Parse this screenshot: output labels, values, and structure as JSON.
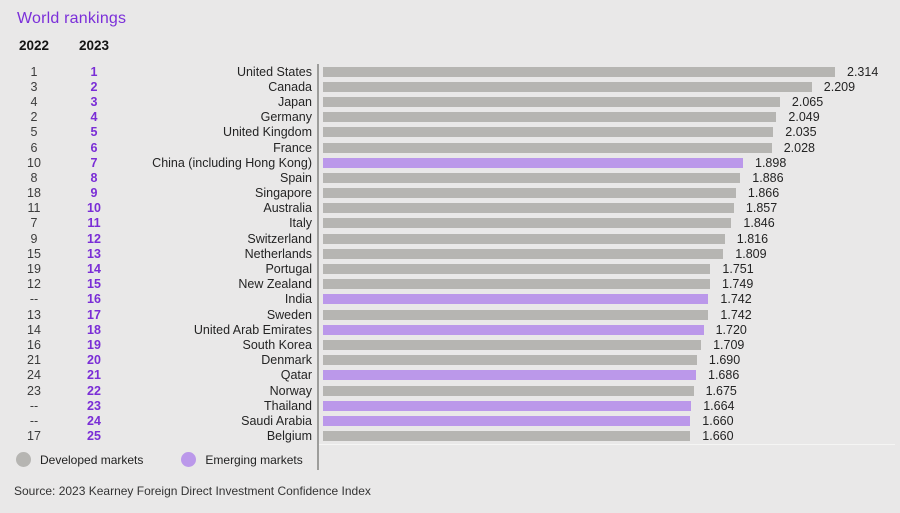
{
  "title": "World rankings",
  "columns": {
    "col2022": "2022",
    "col2023": "2023"
  },
  "colors": {
    "background": "#e9e8e8",
    "title": "#7b2fd9",
    "rank2023": "#7a2dd6",
    "developed": "#b6b5b2",
    "emerging": "#bb98ea",
    "axis": "#9d9d9b",
    "baseline": "#f5f5f4"
  },
  "legend": [
    {
      "label": "Developed markets",
      "type": "developed"
    },
    {
      "label": "Emerging markets",
      "type": "emerging"
    }
  ],
  "source": "Source: 2023 Kearney Foreign Direct Investment Confidence Index",
  "chart_data": {
    "type": "bar",
    "orientation": "horizontal",
    "title": "World rankings",
    "value_max": 2.314,
    "value_axis_range": [
      0,
      2.314
    ],
    "grid": false,
    "legend_position": "bottom-left",
    "rows": [
      {
        "rank2022": "1",
        "rank2023": "1",
        "country": "United States",
        "value": 2.314,
        "market": "developed"
      },
      {
        "rank2022": "3",
        "rank2023": "2",
        "country": "Canada",
        "value": 2.209,
        "market": "developed"
      },
      {
        "rank2022": "4",
        "rank2023": "3",
        "country": "Japan",
        "value": 2.065,
        "market": "developed"
      },
      {
        "rank2022": "2",
        "rank2023": "4",
        "country": "Germany",
        "value": 2.049,
        "market": "developed"
      },
      {
        "rank2022": "5",
        "rank2023": "5",
        "country": "United Kingdom",
        "value": 2.035,
        "market": "developed"
      },
      {
        "rank2022": "6",
        "rank2023": "6",
        "country": "France",
        "value": 2.028,
        "market": "developed"
      },
      {
        "rank2022": "10",
        "rank2023": "7",
        "country": "China (including Hong Kong)",
        "value": 1.898,
        "market": "emerging"
      },
      {
        "rank2022": "8",
        "rank2023": "8",
        "country": "Spain",
        "value": 1.886,
        "market": "developed"
      },
      {
        "rank2022": "18",
        "rank2023": "9",
        "country": "Singapore",
        "value": 1.866,
        "market": "developed"
      },
      {
        "rank2022": "11",
        "rank2023": "10",
        "country": "Australia",
        "value": 1.857,
        "market": "developed"
      },
      {
        "rank2022": "7",
        "rank2023": "11",
        "country": "Italy",
        "value": 1.846,
        "market": "developed"
      },
      {
        "rank2022": "9",
        "rank2023": "12",
        "country": "Switzerland",
        "value": 1.816,
        "market": "developed"
      },
      {
        "rank2022": "15",
        "rank2023": "13",
        "country": "Netherlands",
        "value": 1.809,
        "market": "developed"
      },
      {
        "rank2022": "19",
        "rank2023": "14",
        "country": "Portugal",
        "value": 1.751,
        "market": "developed"
      },
      {
        "rank2022": "12",
        "rank2023": "15",
        "country": "New Zealand",
        "value": 1.749,
        "market": "developed"
      },
      {
        "rank2022": "--",
        "rank2023": "16",
        "country": "India",
        "value": 1.742,
        "market": "emerging"
      },
      {
        "rank2022": "13",
        "rank2023": "17",
        "country": "Sweden",
        "value": 1.742,
        "market": "developed"
      },
      {
        "rank2022": "14",
        "rank2023": "18",
        "country": "United Arab Emirates",
        "value": 1.72,
        "market": "emerging"
      },
      {
        "rank2022": "16",
        "rank2023": "19",
        "country": "South Korea",
        "value": 1.709,
        "market": "developed"
      },
      {
        "rank2022": "21",
        "rank2023": "20",
        "country": "Denmark",
        "value": 1.69,
        "market": "developed"
      },
      {
        "rank2022": "24",
        "rank2023": "21",
        "country": "Qatar",
        "value": 1.686,
        "market": "emerging"
      },
      {
        "rank2022": "23",
        "rank2023": "22",
        "country": "Norway",
        "value": 1.675,
        "market": "developed"
      },
      {
        "rank2022": "--",
        "rank2023": "23",
        "country": "Thailand",
        "value": 1.664,
        "market": "emerging"
      },
      {
        "rank2022": "--",
        "rank2023": "24",
        "country": "Saudi Arabia",
        "value": 1.66,
        "market": "emerging"
      },
      {
        "rank2022": "17",
        "rank2023": "25",
        "country": "Belgium",
        "value": 1.66,
        "market": "developed"
      }
    ]
  }
}
